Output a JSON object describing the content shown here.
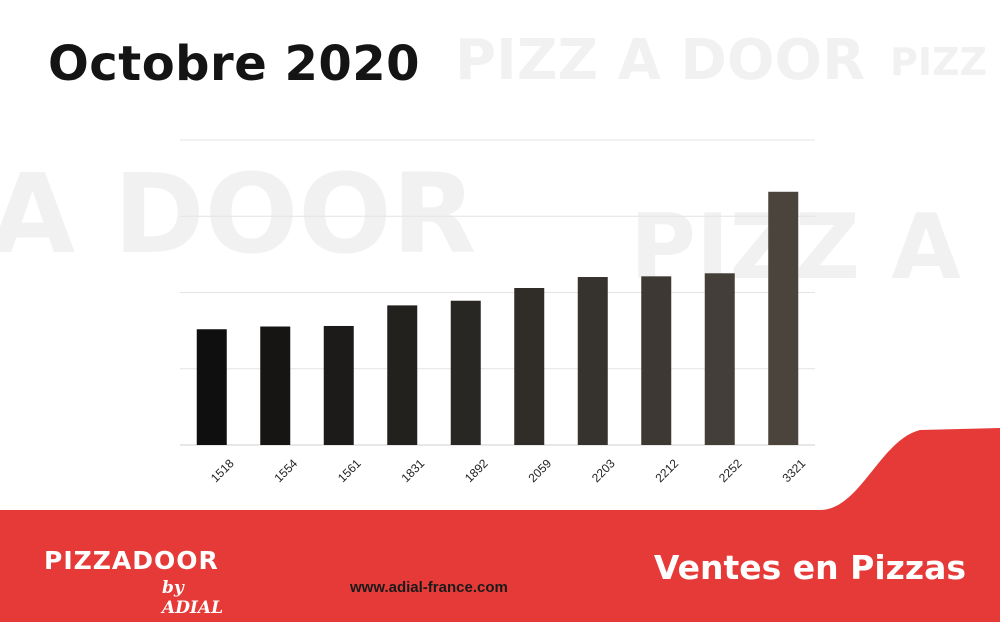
{
  "header": {
    "title": "Octobre 2020"
  },
  "chart_data": {
    "type": "bar",
    "categories": [
      "1518",
      "1554",
      "1561",
      "1831",
      "1892",
      "2059",
      "2203",
      "2212",
      "2252",
      "3321"
    ],
    "values": [
      1518,
      1554,
      1561,
      1831,
      1892,
      2059,
      2203,
      2212,
      2252,
      3321
    ],
    "ylim": [
      0,
      4000
    ],
    "grid": true,
    "bar_color_start": "#0f0f0f",
    "bar_color_end": "#4a443c"
  },
  "footer": {
    "brand_main": "PIZZADOOR",
    "brand_sub": "by ADIAL",
    "url": "www.adial-france.com",
    "tagline": "Ventes en Pizzas",
    "accent_color": "#e63a39"
  }
}
